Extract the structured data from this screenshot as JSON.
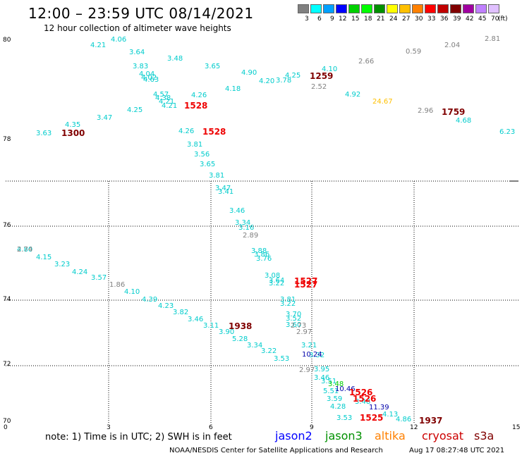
{
  "header": {
    "title": "12:00 – 23:59 UTC 08/14/2021",
    "subtitle": "12 hour collection of altimeter wave heights"
  },
  "legend": {
    "unit": "(ft)",
    "colors": [
      "#808080",
      "#00ffff",
      "#00a0ff",
      "#0000ff",
      "#00d000",
      "#00ff00",
      "#009000",
      "#ffff00",
      "#ffc000",
      "#ff8000",
      "#ff0000",
      "#c00000",
      "#800000",
      "#a000a0",
      "#c080ff",
      "#e0c0ff"
    ],
    "labels": [
      "3",
      "6",
      "9",
      "12",
      "15",
      "18",
      "21",
      "24",
      "27",
      "30",
      "33",
      "36",
      "39",
      "42",
      "45",
      "70"
    ]
  },
  "axes": {
    "lat_labels": [
      "80",
      "78",
      "76",
      "74",
      "72",
      "70"
    ],
    "lon_labels": [
      "0",
      "3",
      "6",
      "9",
      "12",
      "15"
    ]
  },
  "footer": {
    "note": "note: 1) Time is in UTC; 2) SWH is in feet",
    "satellites": [
      {
        "name": "jason2",
        "color": "#0000ff"
      },
      {
        "name": "jason3",
        "color": "#009000"
      },
      {
        "name": "altika",
        "color": "#ff8000"
      },
      {
        "name": "cryosat",
        "color": "#cc0000"
      },
      {
        "name": "s3a",
        "color": "#800000"
      }
    ],
    "credit": "NOAA/NESDIS Center for Satellite Applications and Research",
    "timestamp": "Aug 17 08:27:48 UTC 2021"
  },
  "values": [
    {
      "t": "4.06",
      "c": "#00cccc"
    },
    {
      "t": "4.21",
      "c": "#00cccc"
    },
    {
      "t": "3.64",
      "c": "#00cccc"
    },
    {
      "t": "3.48",
      "c": "#00cccc"
    },
    {
      "t": "3.83",
      "c": "#00cccc"
    },
    {
      "t": "3.65",
      "c": "#00cccc"
    },
    {
      "t": "4.90",
      "c": "#00cccc"
    },
    {
      "t": "4.25",
      "c": "#00cccc"
    },
    {
      "t": "4.10",
      "c": "#00cccc"
    },
    {
      "t": "4.20",
      "c": "#00cccc"
    },
    {
      "t": "3.78",
      "c": "#00cccc"
    },
    {
      "t": "4.18",
      "c": "#00cccc"
    },
    {
      "t": "4.04",
      "c": "#00cccc"
    },
    {
      "t": "4.02",
      "c": "#00cccc"
    },
    {
      "t": "4.63",
      "c": "#00cccc"
    },
    {
      "t": "4.57",
      "c": "#00cccc"
    },
    {
      "t": "4.38",
      "c": "#00cccc"
    },
    {
      "t": "4.21",
      "c": "#00cccc"
    },
    {
      "t": "4.21",
      "c": "#00cccc"
    },
    {
      "t": "4.26",
      "c": "#00cccc"
    },
    {
      "t": "4.25",
      "c": "#00cccc"
    },
    {
      "t": "4.92",
      "c": "#00cccc"
    },
    {
      "t": "3.47",
      "c": "#00cccc"
    },
    {
      "t": "4.35",
      "c": "#00cccc"
    },
    {
      "t": "3.63",
      "c": "#00cccc"
    },
    {
      "t": "4.26",
      "c": "#00cccc"
    },
    {
      "t": "4.68",
      "c": "#00cccc"
    },
    {
      "t": "6.23",
      "c": "#00cccc"
    },
    {
      "t": "3.81",
      "c": "#00cccc"
    },
    {
      "t": "3.56",
      "c": "#00cccc"
    },
    {
      "t": "3.65",
      "c": "#00cccc"
    },
    {
      "t": "3.81",
      "c": "#00cccc"
    },
    {
      "t": "3.47",
      "c": "#00cccc"
    },
    {
      "t": "3.41",
      "c": "#00cccc"
    },
    {
      "t": "3.46",
      "c": "#00cccc"
    },
    {
      "t": "3.34",
      "c": "#00cccc"
    },
    {
      "t": "3.16",
      "c": "#00cccc"
    },
    {
      "t": "4.80",
      "c": "#00cccc"
    },
    {
      "t": "4.15",
      "c": "#00cccc"
    },
    {
      "t": "3.23",
      "c": "#00cccc"
    },
    {
      "t": "4.24",
      "c": "#00cccc"
    },
    {
      "t": "3.57",
      "c": "#00cccc"
    },
    {
      "t": "4.10",
      "c": "#00cccc"
    },
    {
      "t": "4.39",
      "c": "#00cccc"
    },
    {
      "t": "4.23",
      "c": "#00cccc"
    },
    {
      "t": "3.82",
      "c": "#00cccc"
    },
    {
      "t": "3.46",
      "c": "#00cccc"
    },
    {
      "t": "3.11",
      "c": "#00cccc"
    },
    {
      "t": "3.90",
      "c": "#00cccc"
    },
    {
      "t": "5.28",
      "c": "#00cccc"
    },
    {
      "t": "3.34",
      "c": "#00cccc"
    },
    {
      "t": "3.22",
      "c": "#00cccc"
    },
    {
      "t": "3.53",
      "c": "#00cccc"
    },
    {
      "t": "3.88",
      "c": "#00cccc"
    },
    {
      "t": "3.86",
      "c": "#00cccc"
    },
    {
      "t": "3.76",
      "c": "#00cccc"
    },
    {
      "t": "3.08",
      "c": "#00cccc"
    },
    {
      "t": "3.64",
      "c": "#00cccc"
    },
    {
      "t": "3.22",
      "c": "#00cccc"
    },
    {
      "t": "3.81",
      "c": "#00cccc"
    },
    {
      "t": "3.22",
      "c": "#00cccc"
    },
    {
      "t": "3.70",
      "c": "#00cccc"
    },
    {
      "t": "3.52",
      "c": "#00cccc"
    },
    {
      "t": "3.60",
      "c": "#00cccc"
    },
    {
      "t": "3.21",
      "c": "#00cccc"
    },
    {
      "t": "3.32",
      "c": "#00cccc"
    },
    {
      "t": "3.95",
      "c": "#00cccc"
    },
    {
      "t": "3.46",
      "c": "#00cccc"
    },
    {
      "t": "3.51",
      "c": "#00cccc"
    },
    {
      "t": "5.51",
      "c": "#00cccc"
    },
    {
      "t": "3.59",
      "c": "#00cccc"
    },
    {
      "t": "4.28",
      "c": "#00cccc"
    },
    {
      "t": "3.53",
      "c": "#00cccc"
    },
    {
      "t": "4.13",
      "c": "#00cccc"
    },
    {
      "t": "4.86",
      "c": "#00cccc"
    },
    {
      "t": "3.48",
      "c": "#00cccc"
    },
    {
      "t": "2.66",
      "c": "#808080"
    },
    {
      "t": "0.59",
      "c": "#808080"
    },
    {
      "t": "2.04",
      "c": "#808080"
    },
    {
      "t": "2.81",
      "c": "#808080"
    },
    {
      "t": "2.52",
      "c": "#808080"
    },
    {
      "t": "2.96",
      "c": "#808080"
    },
    {
      "t": "2.89",
      "c": "#808080"
    },
    {
      "t": "2.74",
      "c": "#808080"
    },
    {
      "t": "1.86",
      "c": "#808080"
    },
    {
      "t": "2.73",
      "c": "#808080"
    },
    {
      "t": "2.97",
      "c": "#808080"
    },
    {
      "t": "2.97",
      "c": "#808080"
    },
    {
      "t": "24.67",
      "c": "#ffc000"
    },
    {
      "t": "10.24",
      "c": "#0000aa"
    },
    {
      "t": "10.46",
      "c": "#0000aa"
    },
    {
      "t": "11.39",
      "c": "#0000aa"
    },
    {
      "t": "3.48",
      "c": "#00d000"
    }
  ],
  "times": [
    {
      "t": "1259",
      "c": "#800000"
    },
    {
      "t": "1528",
      "c": "#ee0000"
    },
    {
      "t": "1528",
      "c": "#ee0000"
    },
    {
      "t": "1300",
      "c": "#800000"
    },
    {
      "t": "1759",
      "c": "#800000"
    },
    {
      "t": "1527",
      "c": "#ee0000"
    },
    {
      "t": "1527",
      "c": "#ee0000"
    },
    {
      "t": "1938",
      "c": "#800000"
    },
    {
      "t": "1526",
      "c": "#ee0000"
    },
    {
      "t": "1526",
      "c": "#ee0000"
    },
    {
      "t": "1525",
      "c": "#ee0000"
    },
    {
      "t": "1937",
      "c": "#800000"
    }
  ]
}
